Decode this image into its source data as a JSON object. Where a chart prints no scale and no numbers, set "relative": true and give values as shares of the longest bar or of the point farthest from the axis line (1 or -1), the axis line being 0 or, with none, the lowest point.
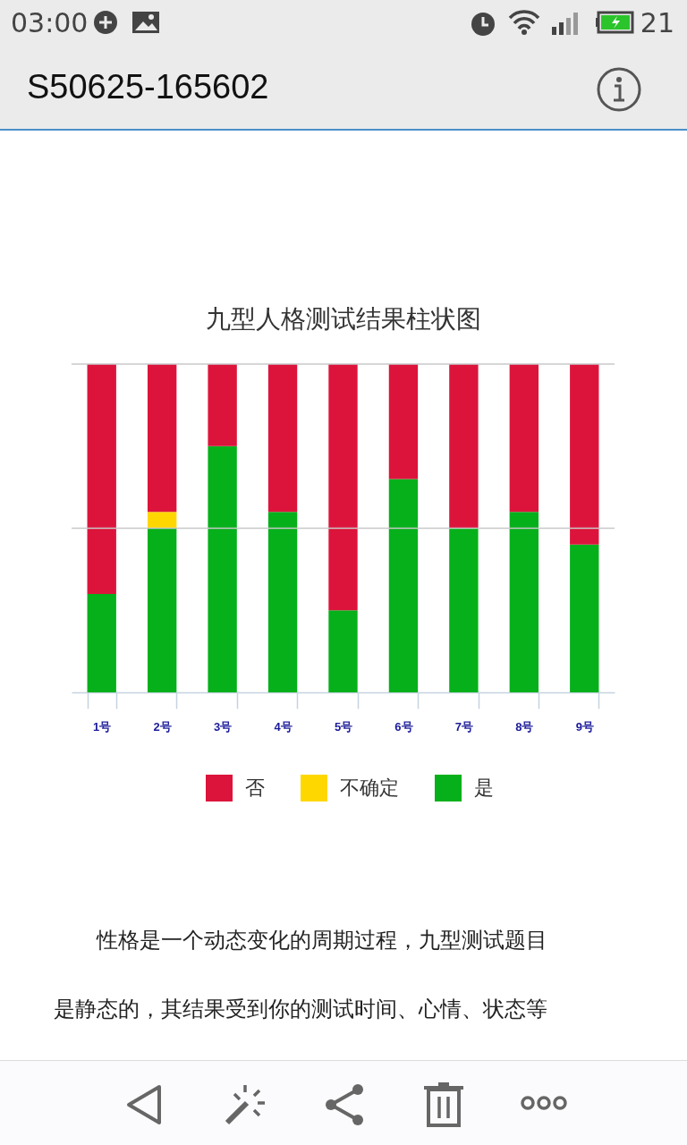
{
  "chart_data": {
    "type": "bar",
    "title": "九型人格测试结果柱状图",
    "categories": [
      "1号",
      "2号",
      "3号",
      "4号",
      "5号",
      "6号",
      "7号",
      "8号",
      "9号"
    ],
    "stacked": true,
    "relative": true,
    "legend": "bottom",
    "ref_lines": [
      {
        "axis": "y",
        "value": 0.5,
        "color": "#c8c8c8"
      },
      {
        "axis": "y",
        "value": 1,
        "color": "#c8c8c8"
      }
    ],
    "series": [
      {
        "name": "是",
        "color": "#06b01b",
        "values": [
          0.3,
          0.5,
          0.75,
          0.55,
          0.25,
          0.65,
          0.5,
          0.55,
          0.45
        ]
      },
      {
        "name": "不确定",
        "color": "#ffd700",
        "values": [
          0,
          0.05,
          0,
          0,
          0,
          0,
          0,
          0,
          0
        ]
      },
      {
        "name": "否",
        "color": "#dc143c",
        "values": [
          0.7,
          0.45,
          0.25,
          0.45,
          0.75,
          0.35,
          0.5,
          0.45,
          0.55
        ]
      }
    ],
    "annotations": [
      "03:00",
      "21",
      "S50625-165602",
      "性格是一个动态变化的周期过程，九型测试题目",
      "是静态的，其结果受到你的测试时间、心情、状态等"
    ]
  }
}
